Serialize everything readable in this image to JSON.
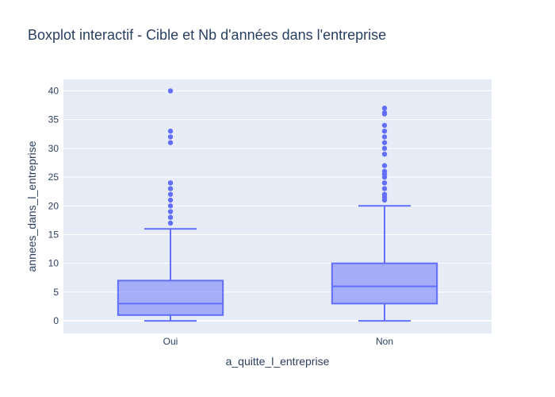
{
  "chart_data": {
    "type": "box",
    "title": "Boxplot interactif - Cible et Nb d'années dans l'entreprise",
    "xlabel": "a_quitte_l_entreprise",
    "ylabel": "annees_dans_l_entreprise",
    "categories": [
      "Oui",
      "Non"
    ],
    "ylim": [
      -2.2,
      42
    ],
    "yticks": [
      0,
      5,
      10,
      15,
      20,
      25,
      30,
      35,
      40
    ],
    "grid": true,
    "colors": {
      "plot_bg": "#e5ecf6",
      "box_line": "#636efa",
      "box_fill": "rgba(99,110,250,0.5)",
      "grid": "#ffffff",
      "text": "#2a3f5f"
    },
    "boxes": [
      {
        "category": "Oui",
        "min": 0,
        "q1": 1,
        "median": 3,
        "q3": 7,
        "max": 16,
        "outliers": [
          17,
          18,
          19,
          20,
          21,
          22,
          23,
          24,
          31,
          32,
          33,
          40
        ]
      },
      {
        "category": "Non",
        "min": 0,
        "q1": 3,
        "median": 6,
        "q3": 10,
        "max": 20,
        "outliers": [
          21,
          21.5,
          22,
          23,
          24,
          25,
          25.5,
          26,
          27,
          29,
          30,
          31,
          32,
          33,
          34,
          36,
          36.2,
          37
        ]
      }
    ]
  }
}
